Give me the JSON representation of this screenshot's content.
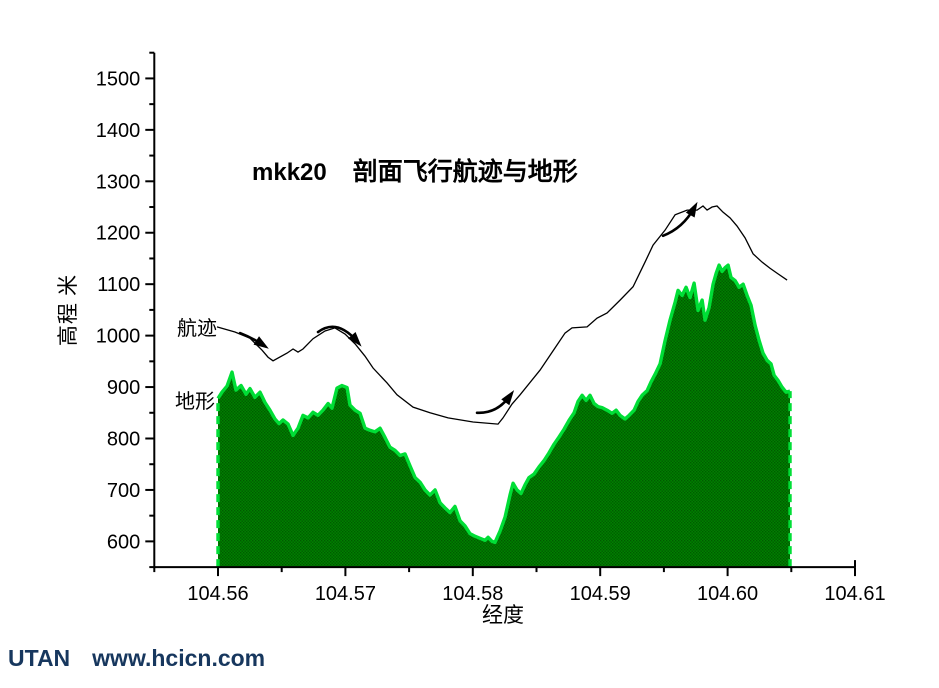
{
  "watermark": {
    "brand": "UTAN",
    "site": "www.hcicn.com",
    "color": "#17375e"
  },
  "chart_data": {
    "type": "area",
    "title_prefix": "mkk20",
    "title": "剖面飞行航迹与地形",
    "xlabel": "经度",
    "ylabel": "高程 米",
    "xlim": [
      104.555,
      104.61
    ],
    "ylim": [
      550,
      1550
    ],
    "grid": false,
    "x_major_ticks": [
      104.56,
      104.57,
      104.58,
      104.59,
      104.6,
      104.61
    ],
    "x_tick_labels": [
      "104.56",
      "104.57",
      "104.58",
      "104.59",
      "104.60",
      "104.61"
    ],
    "x_minor_ticks": [
      104.555,
      104.565,
      104.575,
      104.585,
      104.595,
      104.605
    ],
    "y_major_ticks": [
      600,
      700,
      800,
      900,
      1000,
      1100,
      1200,
      1300,
      1400,
      1500
    ],
    "y_tick_labels": [
      "600",
      "700",
      "800",
      "900",
      "1000",
      "1100",
      "1200",
      "1300",
      "1400",
      "1500"
    ],
    "y_minor_ticks": [
      550,
      650,
      750,
      850,
      950,
      1050,
      1150,
      1250,
      1350,
      1450,
      1550
    ],
    "series_labels": {
      "track": "航迹",
      "terrain": "地形"
    },
    "series": [
      {
        "name": "航迹",
        "type": "line",
        "color": "#000000",
        "points": [
          [
            104.55992,
            1017
          ],
          [
            104.56133,
            1007
          ],
          [
            104.56251,
            995
          ],
          [
            104.56345,
            972
          ],
          [
            104.56393,
            958
          ],
          [
            104.56432,
            951
          ],
          [
            104.56542,
            966
          ],
          [
            104.56589,
            974
          ],
          [
            104.56628,
            968
          ],
          [
            104.56667,
            974
          ],
          [
            104.56746,
            994
          ],
          [
            104.5684,
            1009
          ],
          [
            104.56918,
            1015
          ],
          [
            104.56997,
            1003
          ],
          [
            104.57076,
            984
          ],
          [
            104.57154,
            960
          ],
          [
            104.57217,
            937
          ],
          [
            104.57327,
            908
          ],
          [
            104.57405,
            885
          ],
          [
            104.57531,
            861
          ],
          [
            104.57664,
            850
          ],
          [
            104.57806,
            840
          ],
          [
            104.58002,
            832
          ],
          [
            104.58198,
            828
          ],
          [
            104.58237,
            840
          ],
          [
            104.58308,
            867
          ],
          [
            104.58371,
            885
          ],
          [
            104.58528,
            933
          ],
          [
            104.58645,
            976
          ],
          [
            104.58724,
            1005
          ],
          [
            104.58779,
            1015
          ],
          [
            104.58897,
            1017
          ],
          [
            104.58975,
            1034
          ],
          [
            104.59054,
            1044
          ],
          [
            104.59156,
            1069
          ],
          [
            104.59258,
            1095
          ],
          [
            104.59352,
            1143
          ],
          [
            104.59415,
            1176
          ],
          [
            104.59509,
            1205
          ],
          [
            104.59588,
            1235
          ],
          [
            104.59682,
            1244
          ],
          [
            104.5976,
            1244
          ],
          [
            104.59807,
            1252
          ],
          [
            104.59839,
            1244
          ],
          [
            104.59878,
            1250
          ],
          [
            104.59917,
            1252
          ],
          [
            104.59964,
            1240
          ],
          [
            104.60019,
            1229
          ],
          [
            104.60074,
            1213
          ],
          [
            104.60137,
            1190
          ],
          [
            104.602,
            1159
          ],
          [
            104.6027,
            1143
          ],
          [
            104.60333,
            1131
          ],
          [
            104.60396,
            1120
          ],
          [
            104.60467,
            1108
          ]
        ]
      },
      {
        "name": "地形",
        "type": "area",
        "fill": "#008000",
        "fill_dark": "#005a00",
        "edge": "#00de36",
        "baseline": 550,
        "points": [
          [
            104.56,
            878
          ],
          [
            104.56031,
            890
          ],
          [
            104.56071,
            902
          ],
          [
            104.5611,
            929
          ],
          [
            104.56141,
            894
          ],
          [
            104.56181,
            903
          ],
          [
            104.5622,
            886
          ],
          [
            104.56251,
            897
          ],
          [
            104.5629,
            880
          ],
          [
            104.5633,
            890
          ],
          [
            104.56369,
            870
          ],
          [
            104.56408,
            855
          ],
          [
            104.56447,
            838
          ],
          [
            104.56479,
            829
          ],
          [
            104.5651,
            836
          ],
          [
            104.5655,
            828
          ],
          [
            104.56589,
            806
          ],
          [
            104.56628,
            820
          ],
          [
            104.56667,
            845
          ],
          [
            104.56707,
            840
          ],
          [
            104.56746,
            851
          ],
          [
            104.56785,
            845
          ],
          [
            104.56824,
            855
          ],
          [
            104.56864,
            868
          ],
          [
            104.56895,
            859
          ],
          [
            104.56934,
            898
          ],
          [
            104.56973,
            903
          ],
          [
            104.57013,
            899
          ],
          [
            104.57036,
            865
          ],
          [
            104.57076,
            855
          ],
          [
            104.57115,
            849
          ],
          [
            104.57154,
            820
          ],
          [
            104.57193,
            816
          ],
          [
            104.57232,
            813
          ],
          [
            104.57272,
            820
          ],
          [
            104.57311,
            802
          ],
          [
            104.5735,
            783
          ],
          [
            104.57389,
            777
          ],
          [
            104.57429,
            767
          ],
          [
            104.57468,
            770
          ],
          [
            104.57507,
            747
          ],
          [
            104.57547,
            724
          ],
          [
            104.57586,
            715
          ],
          [
            104.57625,
            700
          ],
          [
            104.57664,
            690
          ],
          [
            104.57704,
            700
          ],
          [
            104.57743,
            675
          ],
          [
            104.57782,
            665
          ],
          [
            104.57821,
            656
          ],
          [
            104.5786,
            668
          ],
          [
            104.579,
            640
          ],
          [
            104.57939,
            630
          ],
          [
            104.57978,
            615
          ],
          [
            104.58017,
            610
          ],
          [
            104.58057,
            606
          ],
          [
            104.58096,
            602
          ],
          [
            104.5812,
            608
          ],
          [
            104.58151,
            600
          ],
          [
            104.58174,
            598
          ],
          [
            104.58214,
            620
          ],
          [
            104.58253,
            647
          ],
          [
            104.58292,
            690
          ],
          [
            104.58316,
            713
          ],
          [
            104.58347,
            700
          ],
          [
            104.58378,
            693
          ],
          [
            104.5841,
            710
          ],
          [
            104.58441,
            724
          ],
          [
            104.58481,
            731
          ],
          [
            104.5852,
            745
          ],
          [
            104.58559,
            757
          ],
          [
            104.58598,
            772
          ],
          [
            104.58638,
            789
          ],
          [
            104.58677,
            803
          ],
          [
            104.58716,
            818
          ],
          [
            104.58755,
            835
          ],
          [
            104.58795,
            850
          ],
          [
            104.58826,
            872
          ],
          [
            104.58858,
            884
          ],
          [
            104.58889,
            874
          ],
          [
            104.5892,
            884
          ],
          [
            104.58952,
            868
          ],
          [
            104.58983,
            862
          ],
          [
            104.59015,
            860
          ],
          [
            104.59054,
            855
          ],
          [
            104.59093,
            849
          ],
          [
            104.59125,
            855
          ],
          [
            104.59156,
            845
          ],
          [
            104.59195,
            838
          ],
          [
            104.59227,
            845
          ],
          [
            104.59266,
            855
          ],
          [
            104.59297,
            872
          ],
          [
            104.59329,
            884
          ],
          [
            104.59368,
            893
          ],
          [
            104.59399,
            910
          ],
          [
            104.59431,
            925
          ],
          [
            104.5947,
            945
          ],
          [
            104.59509,
            990
          ],
          [
            104.59548,
            1030
          ],
          [
            104.59588,
            1065
          ],
          [
            104.59611,
            1088
          ],
          [
            104.59643,
            1078
          ],
          [
            104.59674,
            1094
          ],
          [
            104.59705,
            1074
          ],
          [
            104.59737,
            1102
          ],
          [
            104.59768,
            1049
          ],
          [
            104.598,
            1069
          ],
          [
            104.59823,
            1030
          ],
          [
            104.59855,
            1055
          ],
          [
            104.59886,
            1100
          ],
          [
            104.5991,
            1121
          ],
          [
            104.59933,
            1137
          ],
          [
            104.59957,
            1125
          ],
          [
            104.5998,
            1132
          ],
          [
            104.60004,
            1137
          ],
          [
            104.60027,
            1113
          ],
          [
            104.60059,
            1107
          ],
          [
            104.6009,
            1094
          ],
          [
            104.60122,
            1100
          ],
          [
            104.60153,
            1078
          ],
          [
            104.60184,
            1059
          ],
          [
            104.60216,
            1020
          ],
          [
            104.60247,
            991
          ],
          [
            104.60278,
            966
          ],
          [
            104.6031,
            952
          ],
          [
            104.60341,
            945
          ],
          [
            104.60365,
            923
          ],
          [
            104.60396,
            913
          ],
          [
            104.60427,
            900
          ],
          [
            104.60459,
            890
          ],
          [
            104.6049,
            892
          ]
        ]
      }
    ],
    "direction_arrows": [
      {
        "tail": [
          104.56173,
          1005
        ],
        "ctrl": [
          104.56267,
          996
        ],
        "head": [
          104.56353,
          982
        ]
      },
      {
        "tail": [
          104.56785,
          1007
        ],
        "ctrl": [
          104.56934,
          1034
        ],
        "head": [
          104.57091,
          989
        ]
      },
      {
        "tail": [
          104.58033,
          850
        ],
        "ctrl": [
          104.5819,
          848
        ],
        "head": [
          104.58292,
          883
        ]
      },
      {
        "tail": [
          104.59493,
          1194
        ],
        "ctrl": [
          104.5965,
          1209
        ],
        "head": [
          104.59737,
          1248
        ]
      }
    ]
  }
}
